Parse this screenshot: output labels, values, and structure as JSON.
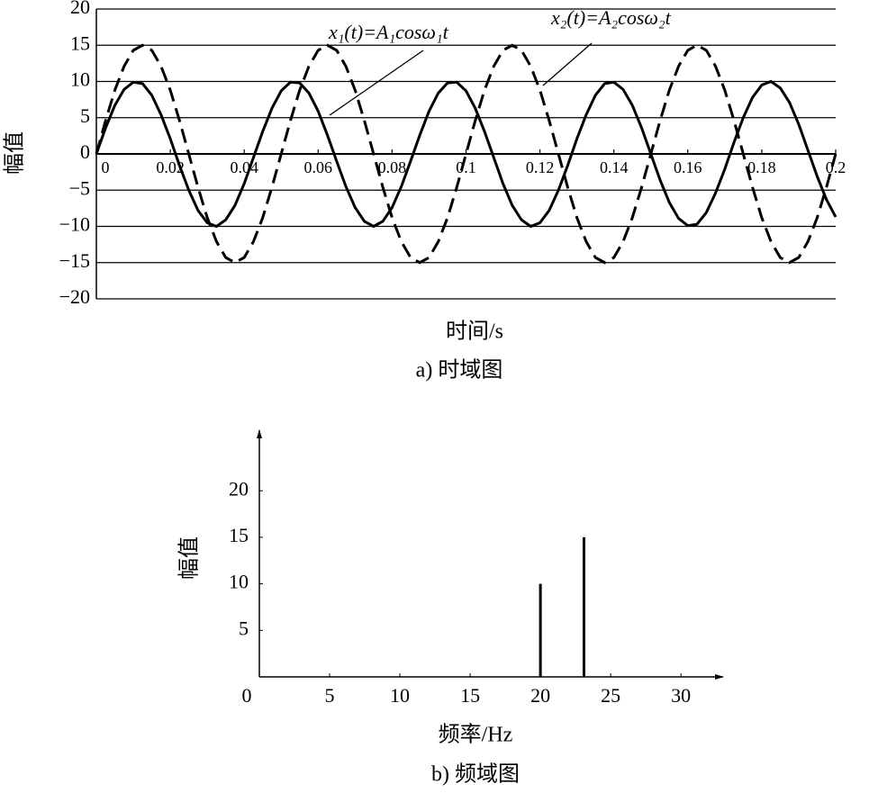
{
  "chart_data": [
    {
      "type": "line",
      "x_label": "时间/s",
      "y_label": "幅值",
      "caption": "a) 时域图",
      "xlim": [
        0,
        0.2
      ],
      "ylim": [
        -20,
        20
      ],
      "xticks": [
        0,
        0.02,
        0.04,
        0.06,
        0.08,
        0.1,
        0.12,
        0.14,
        0.16,
        0.18,
        0.2
      ],
      "yticks": [
        {
          "value": -20,
          "label": "−20"
        },
        {
          "value": -15,
          "label": "−15"
        },
        {
          "value": -10,
          "label": "−10"
        },
        {
          "value": -5,
          "label": "−5"
        },
        0,
        5,
        10,
        15,
        20
      ],
      "grid": true,
      "x": [
        0,
        0.0025,
        0.005,
        0.0075,
        0.01,
        0.0125,
        0.015,
        0.0175,
        0.02,
        0.0225,
        0.025,
        0.0275,
        0.03,
        0.0325,
        0.035,
        0.0375,
        0.04,
        0.0425,
        0.045,
        0.0475,
        0.05,
        0.0525,
        0.055,
        0.0575,
        0.06,
        0.0625,
        0.065,
        0.0675,
        0.07,
        0.0725,
        0.075,
        0.0775,
        0.08,
        0.0825,
        0.085,
        0.0875,
        0.09,
        0.0925,
        0.095,
        0.0975,
        0.1,
        0.1025,
        0.105,
        0.1075,
        0.11,
        0.1125,
        0.115,
        0.1175,
        0.12,
        0.1225,
        0.125,
        0.1275,
        0.13,
        0.1325,
        0.135,
        0.1375,
        0.14,
        0.1425,
        0.145,
        0.1475,
        0.15,
        0.1525,
        0.155,
        0.1575,
        0.16,
        0.1625,
        0.165,
        0.1675,
        0.17,
        0.1725,
        0.175,
        0.1775,
        0.18,
        0.1825,
        0.185,
        0.1875,
        0.19,
        0.1925,
        0.195,
        0.1975,
        0.2
      ],
      "series": [
        {
          "name": "x₁(t)=A₁cosω₁t",
          "color": "#000000",
          "dash": false,
          "values": [
            0,
            3.6,
            6.7,
            8.9,
            9.9,
            9.7,
            8.1,
            5.4,
            2.1,
            -1.6,
            -5,
            -7.8,
            -9.5,
            -10,
            -9.1,
            -7.1,
            -4.1,
            -0.5,
            3.1,
            6.3,
            8.7,
            9.9,
            9.8,
            8.4,
            5.9,
            2.6,
            -1,
            -4.5,
            -7.4,
            -9.3,
            -10,
            -9.3,
            -7.4,
            -4.5,
            -1,
            2.6,
            5.9,
            8.4,
            9.8,
            9.9,
            8.7,
            6.3,
            3.1,
            -0.5,
            -4.1,
            -7.1,
            -9.1,
            -10,
            -9.5,
            -7.8,
            -5,
            -1.6,
            2.1,
            5.4,
            8.1,
            9.7,
            9.9,
            8.9,
            6.7,
            3.6,
            0,
            -3.6,
            -6.7,
            -8.9,
            -9.9,
            -9.7,
            -8.1,
            -5.4,
            -2.1,
            1.6,
            5,
            7.8,
            9.5,
            10,
            9.1,
            7.1,
            4.1,
            0.5,
            -3.1,
            -6.3,
            -8.7
          ]
        },
        {
          "name": "x₂(t)=A₂cosω₂t",
          "color": "#000000",
          "dash": true,
          "values": [
            0,
            4.6,
            8.8,
            12.1,
            14.3,
            15,
            14.3,
            12.1,
            8.8,
            4.6,
            0,
            -4.6,
            -8.8,
            -12.1,
            -14.3,
            -15,
            -14.3,
            -12.1,
            -8.8,
            -4.6,
            0,
            4.6,
            8.8,
            12.1,
            14.3,
            15,
            14.3,
            12.1,
            8.8,
            4.6,
            0,
            -4.6,
            -8.8,
            -12.1,
            -14.3,
            -15,
            -14.3,
            -12.1,
            -8.8,
            -4.6,
            0,
            4.6,
            8.8,
            12.1,
            14.3,
            15,
            14.3,
            12.1,
            8.8,
            4.6,
            0,
            -4.6,
            -8.8,
            -12.1,
            -14.3,
            -15,
            -14.3,
            -12.1,
            -8.8,
            -4.6,
            0,
            4.6,
            8.8,
            12.1,
            14.3,
            15,
            14.3,
            12.1,
            8.8,
            4.6,
            0,
            -4.6,
            -8.8,
            -12.1,
            -14.3,
            -15,
            -14.3,
            -12.1,
            -8.8,
            -4.6,
            0
          ]
        }
      ]
    },
    {
      "type": "stem",
      "x_label": "频率/Hz",
      "y_label": "幅值",
      "caption": "b) 频域图",
      "xlim": [
        0,
        33
      ],
      "ylim": [
        0,
        26.5
      ],
      "xticks": [
        0,
        5,
        10,
        15,
        20,
        25,
        30
      ],
      "yticks": [
        5,
        10,
        15,
        20
      ],
      "x": [
        20,
        23.1
      ],
      "values": [
        10,
        15
      ],
      "color": "#000000"
    }
  ]
}
